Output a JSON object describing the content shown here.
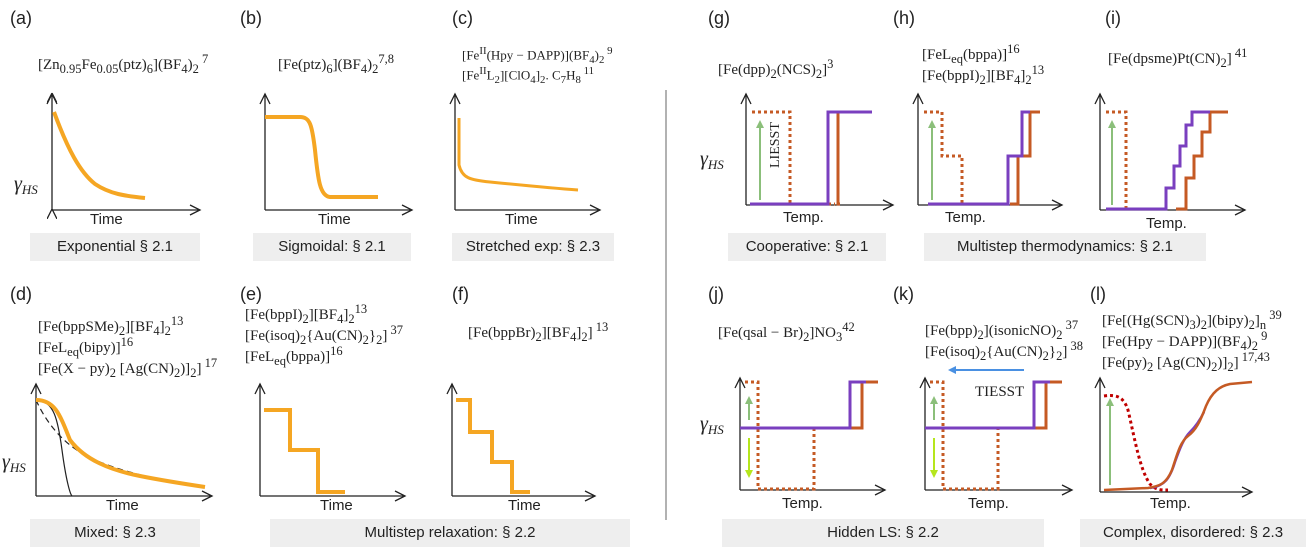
{
  "panels": {
    "a": {
      "label": "(a)",
      "lines": [
        "[Zn0.95Fe0.05(ptz)6](BF4)2 7"
      ],
      "caption": "Exponential § 2.1",
      "xlabel": "Time",
      "ylabel": "γHS"
    },
    "b": {
      "label": "(b)",
      "lines": [
        "[Fe(ptz)6](BF4)2 7,8"
      ],
      "caption": "Sigmoidal: § 2.1",
      "xlabel": "Time"
    },
    "c": {
      "label": "(c)",
      "lines": [
        "[FeII(Hpy − DAPP)](BF4)2 9",
        "[FeIIL2][ClO4]2. C7H8 11"
      ],
      "caption": "Stretched exp: § 2.3",
      "xlabel": "Time"
    },
    "d": {
      "label": "(d)",
      "lines": [
        "[Fe(bppSMe)2][BF4]2 13",
        "[FeLeq(bipy)]16",
        "[Fe(X − py)2 [Ag(CN)2)]2] 17"
      ],
      "caption": "Mixed: § 2.3",
      "xlabel": "Time",
      "ylabel": "γHS"
    },
    "e": {
      "label": "(e)",
      "lines": [
        "[Fe(bppI)2][BF4]2 13",
        "[Fe(isoq)2{Au(CN)2}2] 37",
        "[FeLeq(bppa)]16"
      ],
      "caption": "Multistep relaxation: § 2.2",
      "xlabel": "Time"
    },
    "f": {
      "label": "(f)",
      "lines": [
        "[Fe(bppBr)2][BF4]2] 13"
      ],
      "xlabel": "Time"
    },
    "g": {
      "label": "(g)",
      "lines": [
        "[Fe(dpp)2(NCS)2]3"
      ],
      "caption": "Cooperative: § 2.1",
      "xlabel": "Temp.",
      "ylabel": "γHS",
      "arrow_label": "LIESST"
    },
    "h": {
      "label": "(h)",
      "lines": [
        "[FeLeq(bppa)]16",
        "[Fe(bppI)2][BF4]2 13"
      ],
      "caption": "Multistep thermodynamics: § 2.1",
      "xlabel": "Temp."
    },
    "i": {
      "label": "(i)",
      "lines": [
        "[Fe(dpsme)Pt(CN)2] 41"
      ],
      "xlabel": "Temp."
    },
    "j": {
      "label": "(j)",
      "lines": [
        "[Fe(qsal − Br)2]NO3 42"
      ],
      "caption": "Hidden LS: § 2.2",
      "xlabel": "Temp.",
      "ylabel": "γHS"
    },
    "k": {
      "label": "(k)",
      "lines": [
        "[Fe(bpp)2](isonicNO)2 37",
        "[Fe(isoq)2{Au(CN)2}2] 38"
      ],
      "xlabel": "Temp.",
      "arrow_label": "TIESST"
    },
    "l": {
      "label": "(l)",
      "lines": [
        "[Fe[(Hg(SCN)3)2](bipy)2]n 39",
        "[Fe(Hpy − DAPP)](BF4)2 9",
        "[Fe(py)2 [Ag(CN)2)]2] 17,43"
      ],
      "caption": "Complex, disordered: § 2.3",
      "xlabel": "Temp."
    }
  },
  "colors": {
    "orange": "#f5a623",
    "brown": "#c55a24",
    "purple": "#7a3fbf",
    "green": "#8bbf7a",
    "yellowgreen": "#b5e61d",
    "blue": "#4a90e2",
    "divider": "#999999",
    "caption_bg": "#eeeeee"
  }
}
